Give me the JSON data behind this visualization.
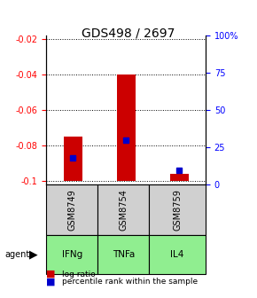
{
  "title": "GDS498 / 2697",
  "samples": [
    "GSM8749",
    "GSM8754",
    "GSM8759"
  ],
  "agents": [
    "IFNg",
    "TNFa",
    "IL4"
  ],
  "log_ratio": [
    -0.075,
    -0.04,
    -0.096
  ],
  "log_ratio_base": [
    -0.1,
    -0.1,
    -0.1
  ],
  "percentile": [
    18,
    30,
    10
  ],
  "ylim_left": [
    -0.102,
    -0.018
  ],
  "ylim_right": [
    0,
    100
  ],
  "yticks_left": [
    -0.1,
    -0.08,
    -0.06,
    -0.04,
    -0.02
  ],
  "yticks_right": [
    0,
    25,
    50,
    75,
    100
  ],
  "ytick_labels_left": [
    "-0.1",
    "-0.08",
    "-0.06",
    "-0.04",
    "-0.02"
  ],
  "ytick_labels_right": [
    "0",
    "25",
    "50",
    "75",
    "100%"
  ],
  "bar_color": "#cc0000",
  "dot_color": "#0000cc",
  "agent_colors": [
    "#aaffaa",
    "#aaffaa",
    "#aaffaa"
  ],
  "sample_bg": "#d0d0d0",
  "legend_bar_label": "log ratio",
  "legend_dot_label": "percentile rank within the sample"
}
